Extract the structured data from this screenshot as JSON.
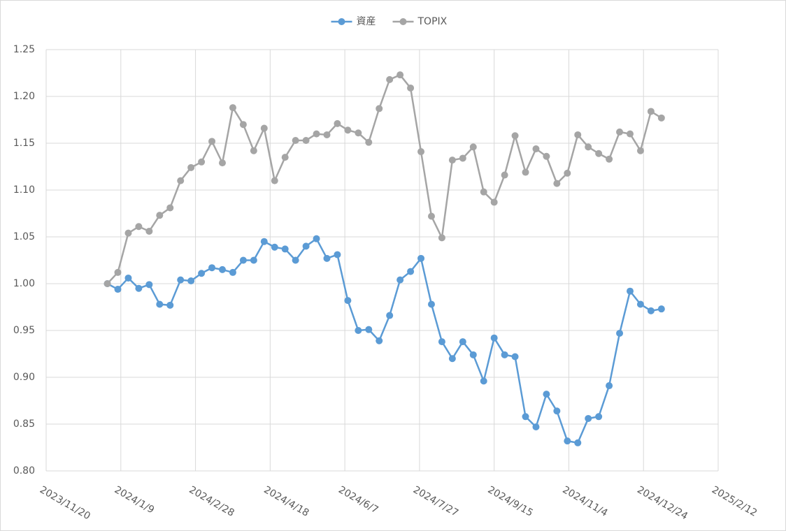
{
  "chart_data": {
    "type": "line",
    "x": [
      "2023-12-31",
      "2024-01-07",
      "2024-01-14",
      "2024-01-21",
      "2024-01-28",
      "2024-02-04",
      "2024-02-11",
      "2024-02-18",
      "2024-02-25",
      "2024-03-03",
      "2024-03-10",
      "2024-03-17",
      "2024-03-24",
      "2024-03-31",
      "2024-04-07",
      "2024-04-14",
      "2024-04-21",
      "2024-04-28",
      "2024-05-05",
      "2024-05-12",
      "2024-05-19",
      "2024-05-26",
      "2024-06-02",
      "2024-06-09",
      "2024-06-16",
      "2024-06-23",
      "2024-06-30",
      "2024-07-07",
      "2024-07-14",
      "2024-07-21",
      "2024-07-28",
      "2024-08-04",
      "2024-08-11",
      "2024-08-18",
      "2024-08-25",
      "2024-09-01",
      "2024-09-08",
      "2024-09-15",
      "2024-09-22",
      "2024-09-29",
      "2024-10-06",
      "2024-10-13",
      "2024-10-20",
      "2024-10-27",
      "2024-11-03",
      "2024-11-10",
      "2024-11-17",
      "2024-11-24",
      "2024-12-01",
      "2024-12-08",
      "2024-12-15",
      "2024-12-22",
      "2024-12-29",
      "2025-01-05"
    ],
    "series": [
      {
        "name": "資産",
        "color": "#5b9bd5",
        "values": [
          1.0,
          0.994,
          1.006,
          0.995,
          0.999,
          0.978,
          0.977,
          1.004,
          1.003,
          1.011,
          1.017,
          1.015,
          1.012,
          1.025,
          1.025,
          1.045,
          1.039,
          1.037,
          1.025,
          1.04,
          1.048,
          1.027,
          1.031,
          0.982,
          0.95,
          0.951,
          0.939,
          0.966,
          1.004,
          1.013,
          1.027,
          0.978,
          0.938,
          0.92,
          0.938,
          0.924,
          0.896,
          0.942,
          0.924,
          0.922,
          0.858,
          0.847,
          0.882,
          0.864,
          0.832,
          0.83,
          0.856,
          0.858,
          0.891,
          0.947,
          0.992,
          0.978,
          0.971,
          0.973
        ]
      },
      {
        "name": "TOPIX",
        "color": "#a5a5a5",
        "values": [
          1.0,
          1.012,
          1.054,
          1.061,
          1.056,
          1.073,
          1.081,
          1.11,
          1.124,
          1.13,
          1.152,
          1.129,
          1.188,
          1.17,
          1.142,
          1.166,
          1.11,
          1.135,
          1.153,
          1.153,
          1.16,
          1.159,
          1.171,
          1.164,
          1.161,
          1.151,
          1.187,
          1.218,
          1.223,
          1.209,
          1.141,
          1.072,
          1.049,
          1.132,
          1.134,
          1.146,
          1.098,
          1.087,
          1.116,
          1.158,
          1.119,
          1.144,
          1.136,
          1.107,
          1.118,
          1.159,
          1.146,
          1.139,
          1.133,
          1.162,
          1.16,
          1.142,
          1.184,
          1.177
        ]
      }
    ],
    "xlim": [
      "2023-11-20",
      "2025-02-12"
    ],
    "xticks": [
      {
        "value": "2023-11-20",
        "label": "2023/11/20"
      },
      {
        "value": "2024-01-09",
        "label": "2024/1/9"
      },
      {
        "value": "2024-02-28",
        "label": "2024/2/28"
      },
      {
        "value": "2024-04-18",
        "label": "2024/4/18"
      },
      {
        "value": "2024-06-07",
        "label": "2024/6/7"
      },
      {
        "value": "2024-07-27",
        "label": "2024/7/27"
      },
      {
        "value": "2024-09-15",
        "label": "2024/9/15"
      },
      {
        "value": "2024-11-04",
        "label": "2024/11/4"
      },
      {
        "value": "2024-12-24",
        "label": "2024/12/24"
      },
      {
        "value": "2025-02-12",
        "label": "2025/2/12"
      }
    ],
    "ylim": [
      0.8,
      1.25
    ],
    "yticks": [
      {
        "value": 0.8,
        "label": "0.80"
      },
      0.85,
      {
        "value": 0.9,
        "label": "0.90"
      },
      0.95,
      {
        "value": 1,
        "label": "1.00"
      },
      1.05,
      {
        "value": 1.1,
        "label": "1.10"
      },
      1.15,
      {
        "value": 1.2,
        "label": "1.20"
      },
      1.25
    ],
    "grid": true,
    "legend": "top"
  }
}
